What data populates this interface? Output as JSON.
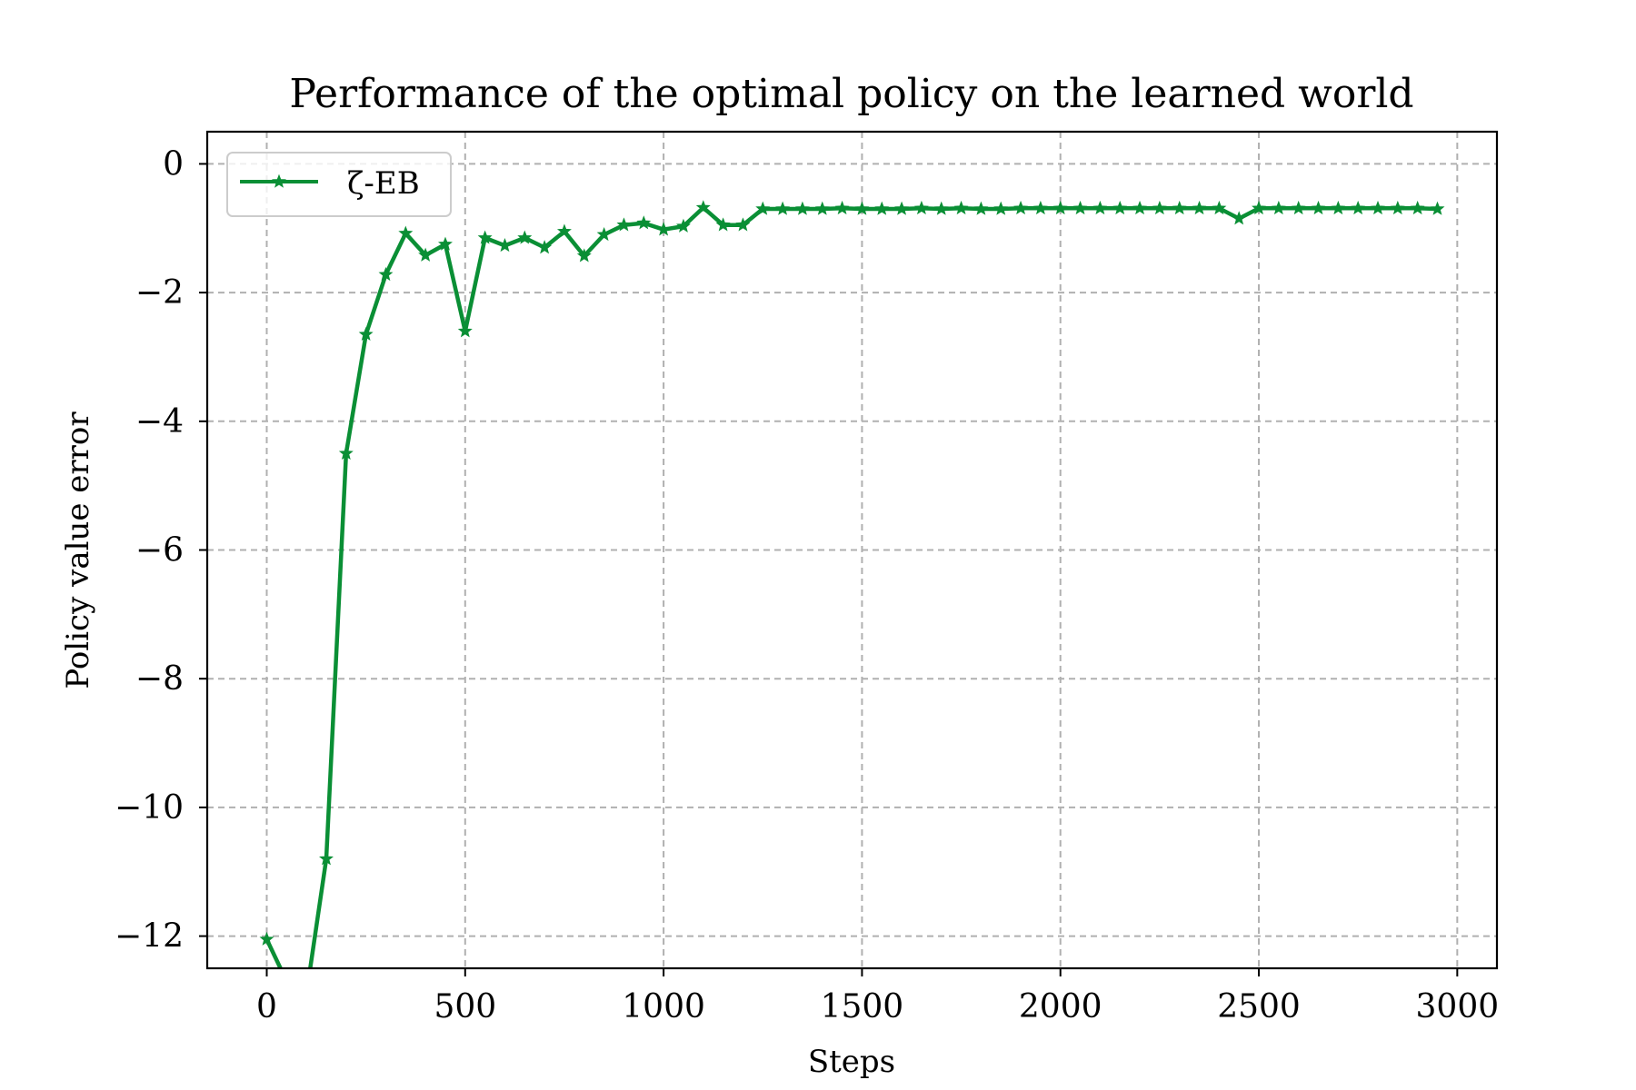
{
  "chart_data": {
    "type": "line",
    "title": "Performance of the optimal policy on the learned world",
    "xlabel": "Steps",
    "ylabel": "Policy value error",
    "xlim": [
      -150,
      3100
    ],
    "ylim": [
      -12.5,
      0.5
    ],
    "xticks": [
      0,
      500,
      1000,
      1500,
      2000,
      2500,
      3000
    ],
    "xtick_labels": [
      "0",
      "500",
      "1000",
      "1500",
      "2000",
      "2500",
      "3000"
    ],
    "yticks": [
      0,
      -2,
      -4,
      -6,
      -8,
      -10,
      -12
    ],
    "ytick_labels": [
      "0",
      "−2",
      "−4",
      "−6",
      "−8",
      "−10",
      "−12"
    ],
    "grid": true,
    "legend_position": "top-left",
    "series": [
      {
        "name": "ζ-EB",
        "color": "#0a8f35",
        "marker": "star",
        "x": [
          0,
          50,
          100,
          150,
          200,
          250,
          300,
          350,
          400,
          450,
          500,
          550,
          600,
          650,
          700,
          750,
          800,
          850,
          900,
          950,
          1000,
          1050,
          1100,
          1150,
          1200,
          1250,
          1300,
          1350,
          1400,
          1450,
          1500,
          1550,
          1600,
          1650,
          1700,
          1750,
          1800,
          1850,
          1900,
          1950,
          2000,
          2050,
          2100,
          2150,
          2200,
          2250,
          2300,
          2350,
          2400,
          2450,
          2500,
          2550,
          2600,
          2650,
          2700,
          2750,
          2800,
          2850,
          2900,
          2950
        ],
        "y": [
          -12.05,
          -12.7,
          -12.9,
          -10.8,
          -4.5,
          -2.65,
          -1.72,
          -1.08,
          -1.42,
          -1.25,
          -2.6,
          -1.15,
          -1.27,
          -1.15,
          -1.3,
          -1.05,
          -1.43,
          -1.1,
          -0.95,
          -0.92,
          -1.02,
          -0.97,
          -0.68,
          -0.95,
          -0.95,
          -0.7,
          -0.7,
          -0.7,
          -0.7,
          -0.69,
          -0.7,
          -0.7,
          -0.7,
          -0.69,
          -0.7,
          -0.69,
          -0.7,
          -0.7,
          -0.69,
          -0.69,
          -0.69,
          -0.69,
          -0.69,
          -0.69,
          -0.69,
          -0.69,
          -0.69,
          -0.69,
          -0.69,
          -0.85,
          -0.69,
          -0.69,
          -0.69,
          -0.69,
          -0.69,
          -0.69,
          -0.69,
          -0.69,
          -0.69,
          -0.7
        ]
      }
    ]
  }
}
